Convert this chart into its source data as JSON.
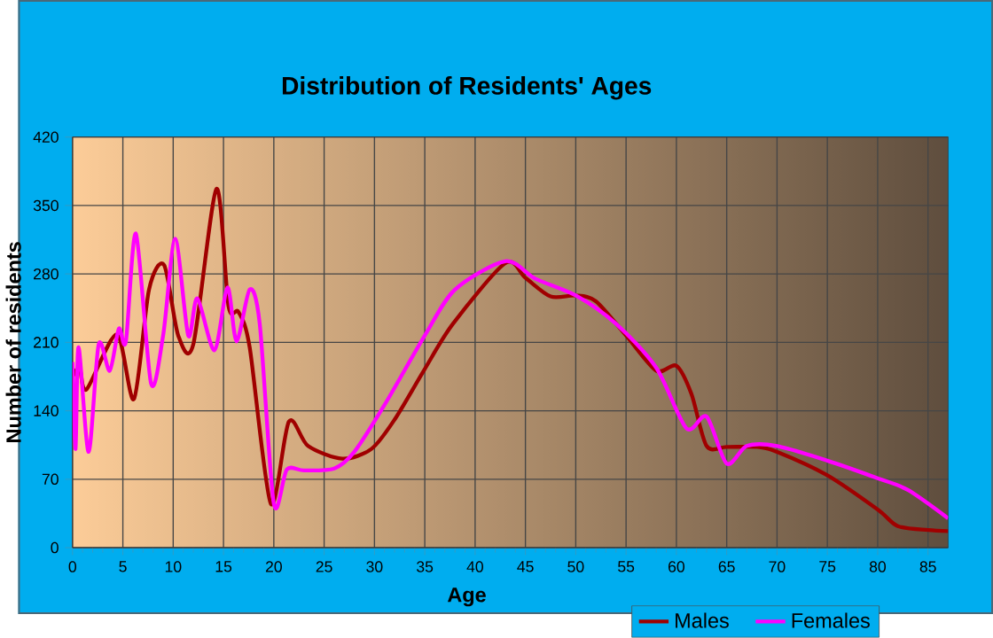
{
  "chart_data": {
    "type": "line",
    "title": "Distribution of Residents' Ages",
    "xlabel": "Age",
    "ylabel": "Number of residents",
    "xlim": [
      0,
      87
    ],
    "xticks": [
      0,
      5,
      10,
      15,
      20,
      25,
      30,
      35,
      40,
      45,
      50,
      55,
      60,
      65,
      70,
      75,
      80,
      85
    ],
    "ylim": [
      0,
      420
    ],
    "yticks": [
      0,
      70,
      140,
      210,
      280,
      350,
      420
    ],
    "grid": true,
    "legend": "bottom right",
    "series": [
      {
        "name": "Males",
        "color": "#a00000",
        "x": [
          0,
          0.7,
          1.4,
          4.4,
          6.1,
          7.6,
          9.1,
          10.5,
          12,
          14.3,
          15.5,
          16.5,
          17.6,
          19.7,
          21.5,
          23.4,
          26.8,
          29.7,
          32,
          34.9,
          37.8,
          43,
          45,
          47.5,
          50,
          52,
          55,
          58,
          60,
          61.5,
          63,
          65,
          68,
          70,
          75,
          80,
          82,
          85,
          87
        ],
        "values": [
          175,
          184,
          162,
          218,
          152,
          264,
          289,
          217,
          208,
          367,
          247,
          241,
          205,
          45,
          129,
          104,
          91,
          101,
          131,
          181,
          229,
          291,
          276,
          257,
          258,
          252,
          217,
          181,
          186,
          157,
          104,
          103,
          103,
          98,
          74,
          39,
          22,
          18,
          17
        ]
      },
      {
        "name": "Females",
        "color": "#ff00ff",
        "x": [
          0,
          0.3,
          0.6,
          1.6,
          2.6,
          3.7,
          4.6,
          5.3,
          6.3,
          7.8,
          9,
          10.2,
          11.5,
          12.4,
          14.1,
          15.4,
          16.3,
          17.6,
          18.6,
          20,
          21.3,
          23,
          26,
          28,
          31,
          35,
          38,
          43,
          46,
          50,
          54,
          58,
          61,
          63,
          65,
          67,
          70,
          75,
          80,
          83,
          87
        ],
        "values": [
          190,
          101,
          205,
          98,
          208,
          181,
          224,
          211,
          321,
          168,
          217,
          316,
          217,
          255,
          202,
          266,
          211,
          264,
          229,
          45,
          80,
          79,
          81,
          98,
          146,
          217,
          264,
          293,
          275,
          258,
          229,
          184,
          122,
          134,
          86,
          104,
          104,
          89,
          71,
          59,
          30
        ]
      }
    ]
  }
}
